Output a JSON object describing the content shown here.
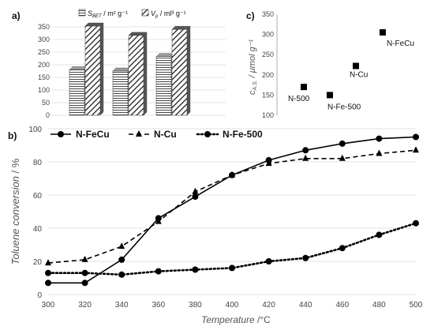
{
  "panels": {
    "a": "a)",
    "b": "b)",
    "c": "c)"
  },
  "chart_data": [
    {
      "type": "bar",
      "panel": "a)",
      "categories": [
        "",
        "",
        "",
        ""
      ],
      "series": [
        {
          "name": "S_BET / m² g⁻¹",
          "symbol": "S",
          "subscript": "BET",
          "unit": " / m² g⁻¹",
          "pattern": "horizontal-lines",
          "values": [
            180,
            175,
            232,
            null
          ]
        },
        {
          "name": "V_p / ml³ g⁻¹",
          "symbol": "V",
          "subscript": "p",
          "unit": " / ml³ g⁻¹",
          "pattern": "diagonal-lines",
          "values": [
            353,
            316,
            340,
            null
          ]
        }
      ],
      "ylim": [
        0,
        350
      ],
      "yticks": [
        "0",
        "50",
        "100",
        "150",
        "200",
        "250",
        "300",
        "350"
      ],
      "grid": true,
      "legend": "top"
    },
    {
      "type": "scatter",
      "panel": "c)",
      "points": [
        {
          "label": "N-500",
          "value": 170
        },
        {
          "label": "N-Fe-500",
          "value": 150
        },
        {
          "label": "N-Cu",
          "value": 222
        },
        {
          "label": "N-FeCu",
          "value": 305
        }
      ],
      "ylabel_main": "c",
      "ylabel_sub": "A.S.",
      "ylabel_unit": " / μmol g⁻¹",
      "ylim": [
        100,
        350
      ],
      "yticks": [
        "100",
        "150",
        "200",
        "250",
        "300",
        "350"
      ],
      "marker": "square",
      "color": "#000000"
    },
    {
      "type": "line",
      "panel": "b)",
      "x": [
        300,
        320,
        340,
        360,
        380,
        400,
        420,
        440,
        460,
        480,
        500
      ],
      "series": [
        {
          "name": "N-FeCu",
          "style": "solid",
          "marker": "circle",
          "values": [
            7,
            7,
            21,
            46,
            59,
            72,
            81,
            87,
            91,
            94,
            95
          ]
        },
        {
          "name": "N-Cu",
          "style": "dashed",
          "marker": "triangle",
          "values": [
            19,
            21,
            29,
            44,
            62,
            72,
            79,
            82,
            82,
            85,
            87
          ]
        },
        {
          "name": "N-Fe-500",
          "style": "dotted",
          "marker": "circle",
          "values": [
            13,
            13,
            12,
            14,
            15,
            16,
            20,
            22,
            28,
            36,
            43
          ]
        }
      ],
      "xlabel": "Temperature",
      "xlabel_unit": " /°C",
      "ylabel": "Toluene conversion",
      "ylabel_unit": " / %",
      "xlim": [
        300,
        500
      ],
      "ylim": [
        0,
        100
      ],
      "xticks": [
        "300",
        "320",
        "340",
        "360",
        "380",
        "400",
        "420",
        "440",
        "460",
        "480",
        "500"
      ],
      "yticks": [
        "0",
        "20",
        "40",
        "60",
        "80",
        "100"
      ],
      "grid": true,
      "legend": "top"
    }
  ]
}
